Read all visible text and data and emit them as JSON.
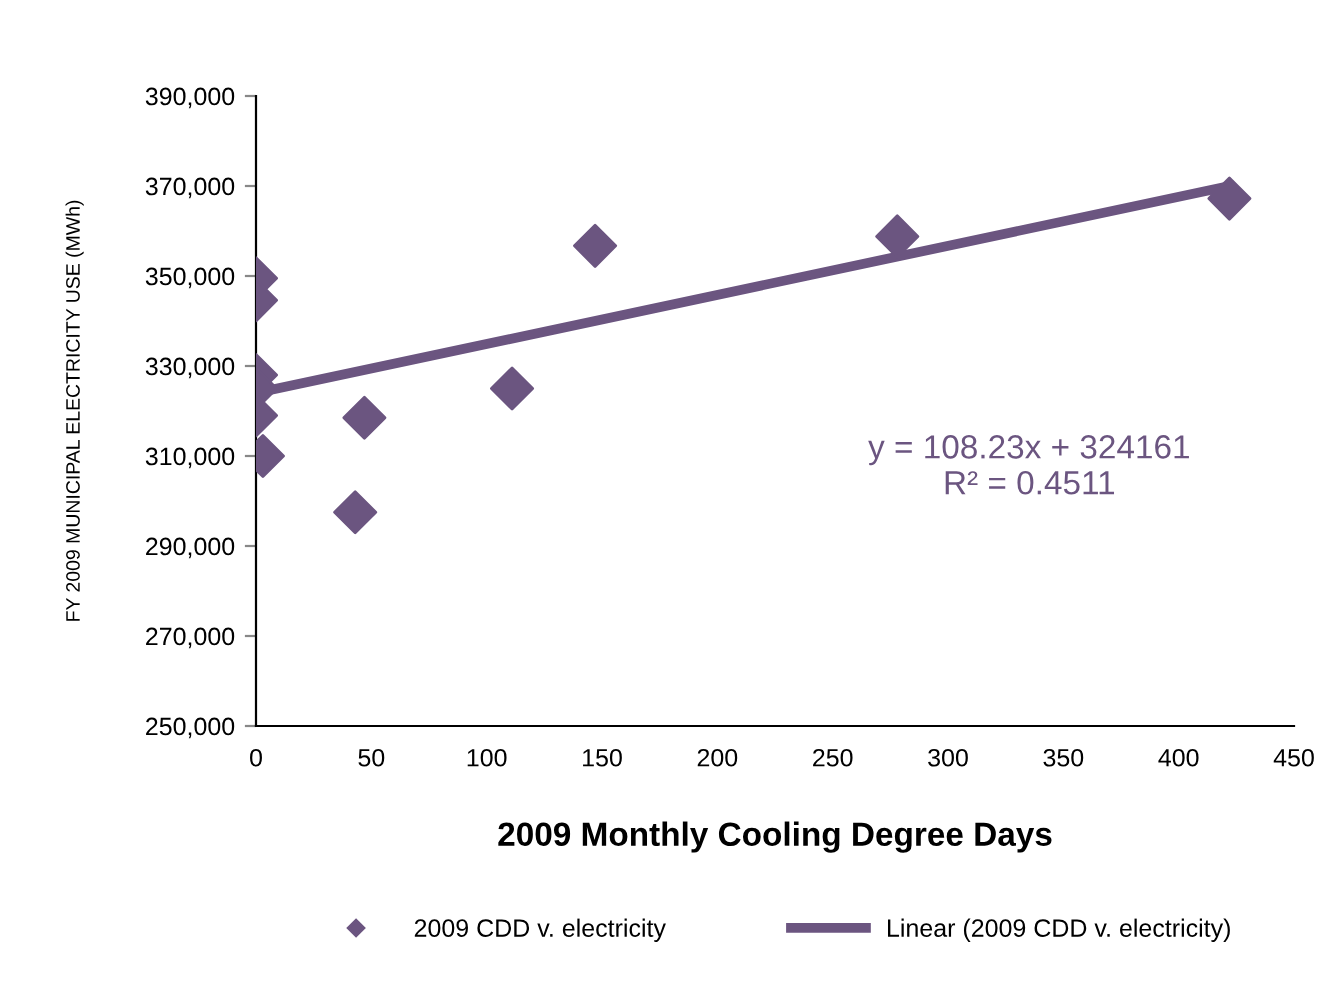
{
  "chart_data": {
    "type": "scatter",
    "xlabel": "2009 Monthly Cooling Degree Days",
    "ylabel": "FY 2009 MUNICIPAL ELECTRICITY USE (MWh)",
    "series": [
      {
        "name": "2009 CDD v. electricity",
        "color": "#6b5580",
        "marker": "diamond",
        "x": [
          0,
          0,
          0,
          0,
          0,
          3,
          47,
          43,
          111,
          147,
          278,
          422
        ],
        "values": [
          349500,
          344600,
          328000,
          325000,
          319000,
          310000,
          318500,
          297500,
          325000,
          356700,
          358800,
          367200
        ]
      },
      {
        "name": "Linear (2009 CDD v. electricity)",
        "type": "line",
        "color": "#6b5580",
        "line_style": "solid",
        "x": [
          0,
          422
        ],
        "values": [
          324000,
          370000
        ]
      }
    ],
    "annotations": [
      "y = 108.23x + 324161\nR² = 0.4511"
    ],
    "xlim": [
      0,
      450
    ],
    "xticks": [
      0,
      50,
      100,
      150,
      200,
      250,
      300,
      350,
      400,
      450
    ],
    "ylim": [
      250000,
      390000
    ],
    "yticks": [
      {
        "value": 250000,
        "label": "250,000"
      },
      {
        "value": 270000,
        "label": "270,000"
      },
      {
        "value": 290000,
        "label": "290,000"
      },
      {
        "value": 310000,
        "label": "310,000"
      },
      {
        "value": 330000,
        "label": "330,000"
      },
      {
        "value": 350000,
        "label": "350,000"
      },
      {
        "value": 370000,
        "label": "370,000"
      },
      {
        "value": 390000,
        "label": "390,000"
      }
    ],
    "grid": false,
    "legend": "bottom"
  }
}
